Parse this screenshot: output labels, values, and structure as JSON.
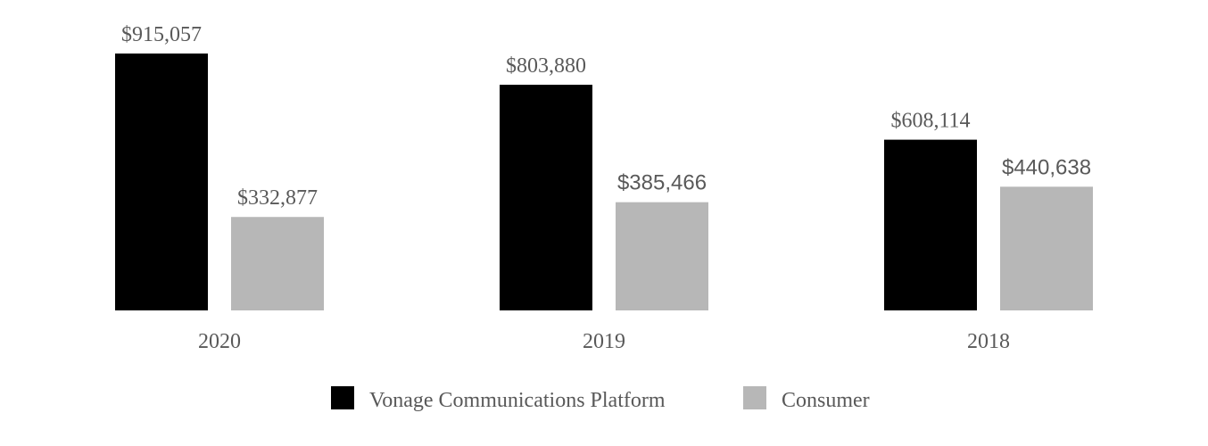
{
  "chart_data": {
    "type": "bar",
    "categories": [
      "2020",
      "2019",
      "2018"
    ],
    "series": [
      {
        "name": "Vonage Communications Platform",
        "values": [
          915057,
          803880,
          608114
        ],
        "labels": [
          "$915,057",
          "$803,880",
          "$608,114"
        ],
        "color": "#000000"
      },
      {
        "name": "Consumer",
        "values": [
          332877,
          385466,
          440638
        ],
        "labels": [
          "$332,877",
          "$385,466",
          "$440,638"
        ],
        "color": "#b7b7b7"
      }
    ],
    "legend_position": "bottom",
    "grid": false,
    "ylim": [
      0,
      915057
    ]
  }
}
